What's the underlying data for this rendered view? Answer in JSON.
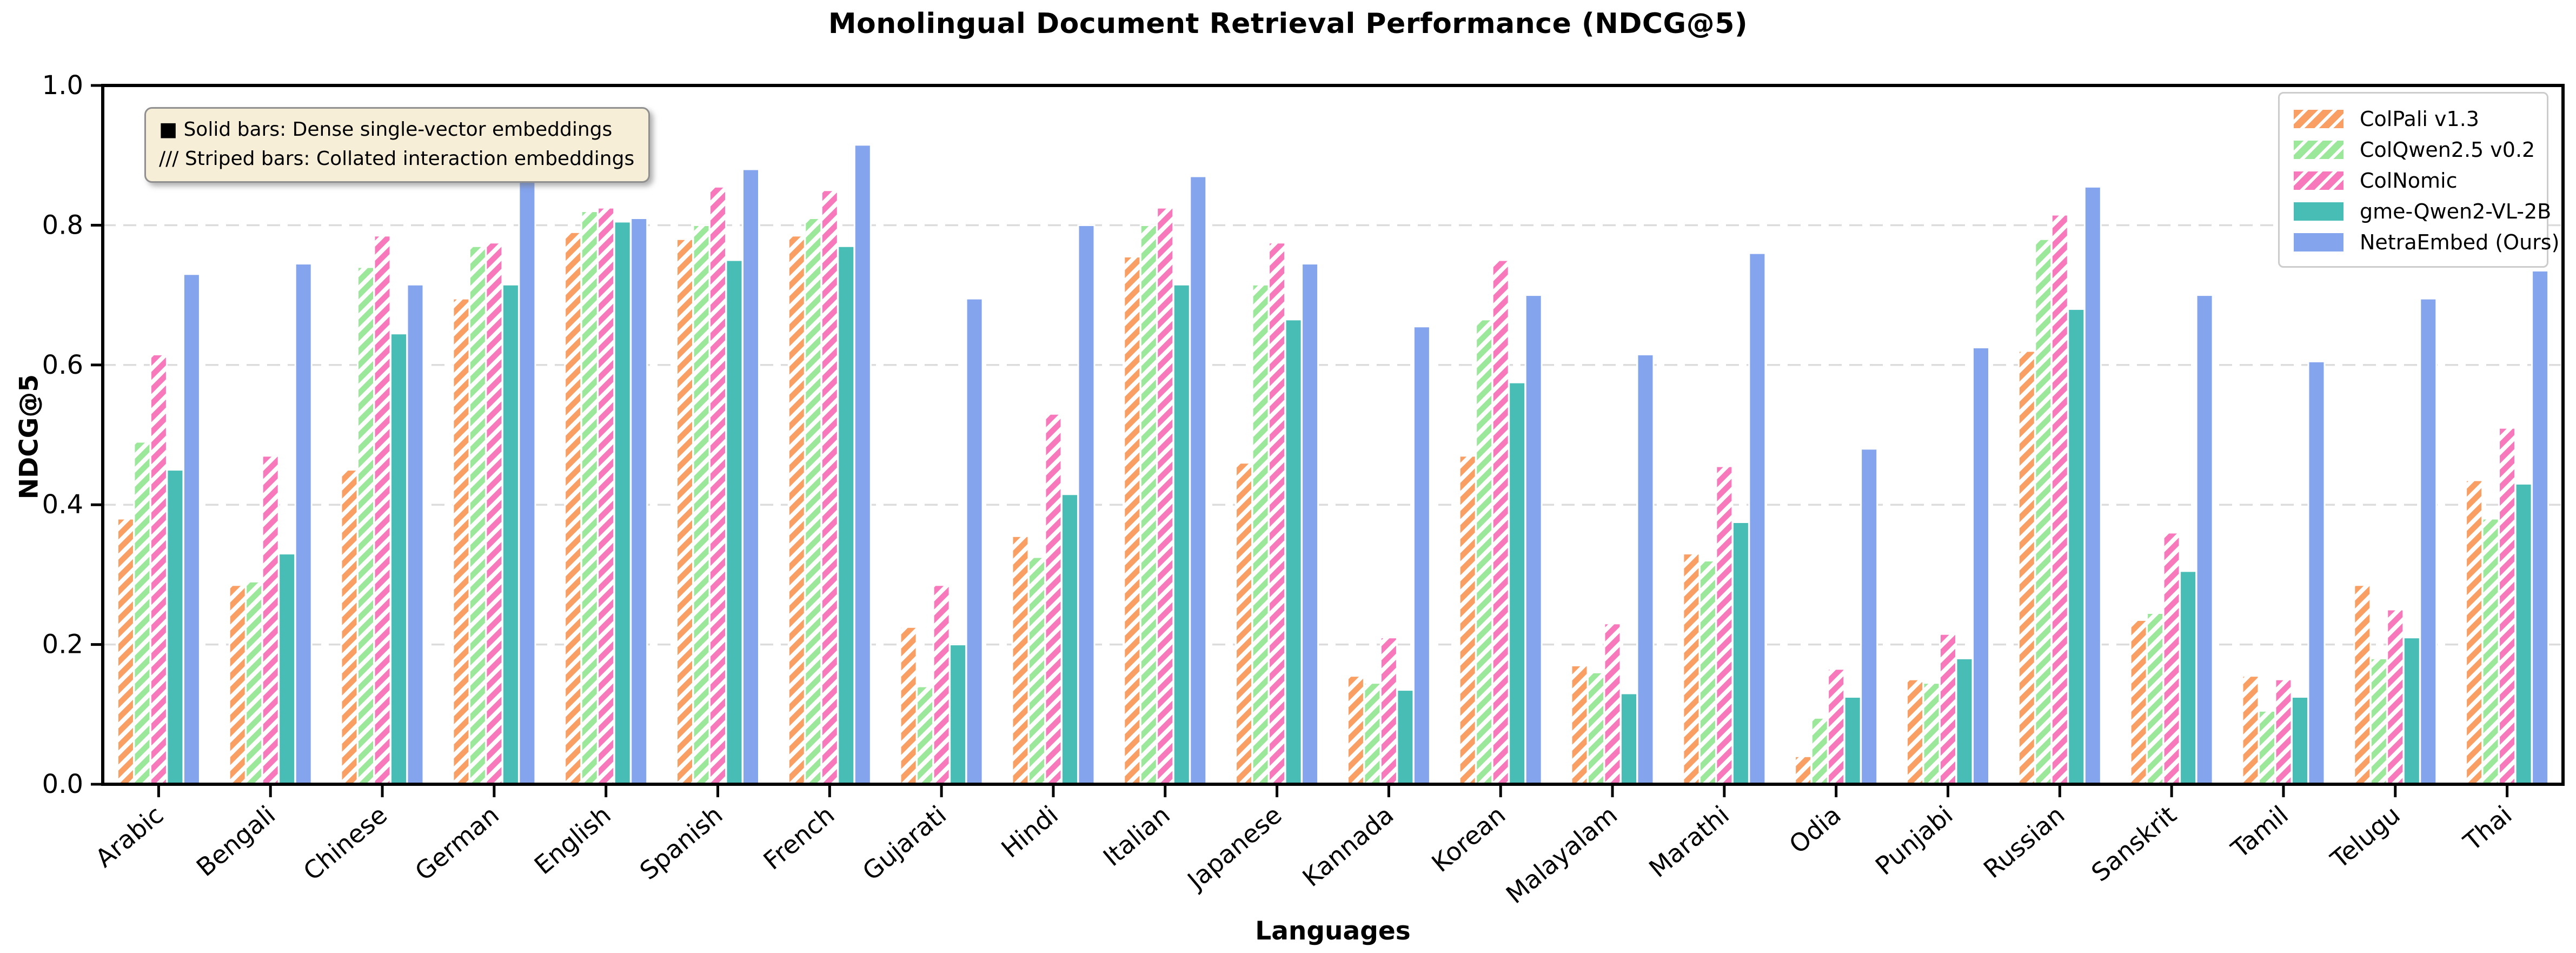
{
  "title": "Monolingual Document Retrieval Performance (NDCG@5)",
  "note": {
    "line1": "■ Solid bars: Dense single-vector embeddings",
    "line2": "/// Striped bars: Collated interaction embeddings"
  },
  "chart_data": {
    "type": "bar",
    "title": "Monolingual Document Retrieval Performance (NDCG@5)",
    "xlabel": "Languages",
    "ylabel": "NDCG@5",
    "ylim": [
      0.0,
      1.0
    ],
    "yticks": [
      "0.0",
      "0.2",
      "0.4",
      "0.6",
      "0.8",
      "1.0"
    ],
    "grid": "horizontal dashed lines at 0.2 intervals",
    "legend_position": "upper right",
    "legend_note": "first three series hatched, last two solid",
    "categories": [
      "Arabic",
      "Bengali",
      "Chinese",
      "German",
      "English",
      "Spanish",
      "French",
      "Gujarati",
      "Hindi",
      "Italian",
      "Japanese",
      "Kannada",
      "Korean",
      "Malayalam",
      "Marathi",
      "Odia",
      "Punjabi",
      "Russian",
      "Sanskrit",
      "Tamil",
      "Telugu",
      "Thai"
    ],
    "series": [
      {
        "name": "ColPali v1.3",
        "color": "#FA9F63",
        "hatch": true,
        "values": [
          0.38,
          0.285,
          0.45,
          0.695,
          0.79,
          0.78,
          0.785,
          0.225,
          0.355,
          0.755,
          0.46,
          0.155,
          0.47,
          0.17,
          0.33,
          0.04,
          0.15,
          0.62,
          0.235,
          0.155,
          0.285,
          0.435
        ]
      },
      {
        "name": "ColQwen2.5 v0.2",
        "color": "#9BE89B",
        "hatch": true,
        "values": [
          0.49,
          0.29,
          0.74,
          0.77,
          0.82,
          0.8,
          0.81,
          0.14,
          0.325,
          0.8,
          0.715,
          0.145,
          0.665,
          0.16,
          0.32,
          0.095,
          0.145,
          0.78,
          0.245,
          0.105,
          0.18,
          0.38
        ]
      },
      {
        "name": "ColNomic",
        "color": "#F878BC",
        "hatch": true,
        "values": [
          0.615,
          0.47,
          0.785,
          0.775,
          0.825,
          0.855,
          0.85,
          0.285,
          0.53,
          0.825,
          0.775,
          0.21,
          0.75,
          0.23,
          0.455,
          0.165,
          0.215,
          0.815,
          0.36,
          0.15,
          0.25,
          0.51
        ]
      },
      {
        "name": "gme-Qwen2-VL-2B",
        "color": "#47BDB5",
        "hatch": false,
        "values": [
          0.45,
          0.33,
          0.645,
          0.715,
          0.805,
          0.75,
          0.77,
          0.2,
          0.415,
          0.715,
          0.665,
          0.135,
          0.575,
          0.13,
          0.375,
          0.125,
          0.18,
          0.68,
          0.305,
          0.125,
          0.21,
          0.43
        ]
      },
      {
        "name": "NetraEmbed (Ours)",
        "color": "#84A4ED",
        "hatch": false,
        "values": [
          0.73,
          0.745,
          0.715,
          0.865,
          0.81,
          0.88,
          0.915,
          0.695,
          0.8,
          0.87,
          0.745,
          0.655,
          0.7,
          0.615,
          0.76,
          0.48,
          0.625,
          0.855,
          0.7,
          0.605,
          0.695,
          0.735
        ]
      }
    ]
  }
}
